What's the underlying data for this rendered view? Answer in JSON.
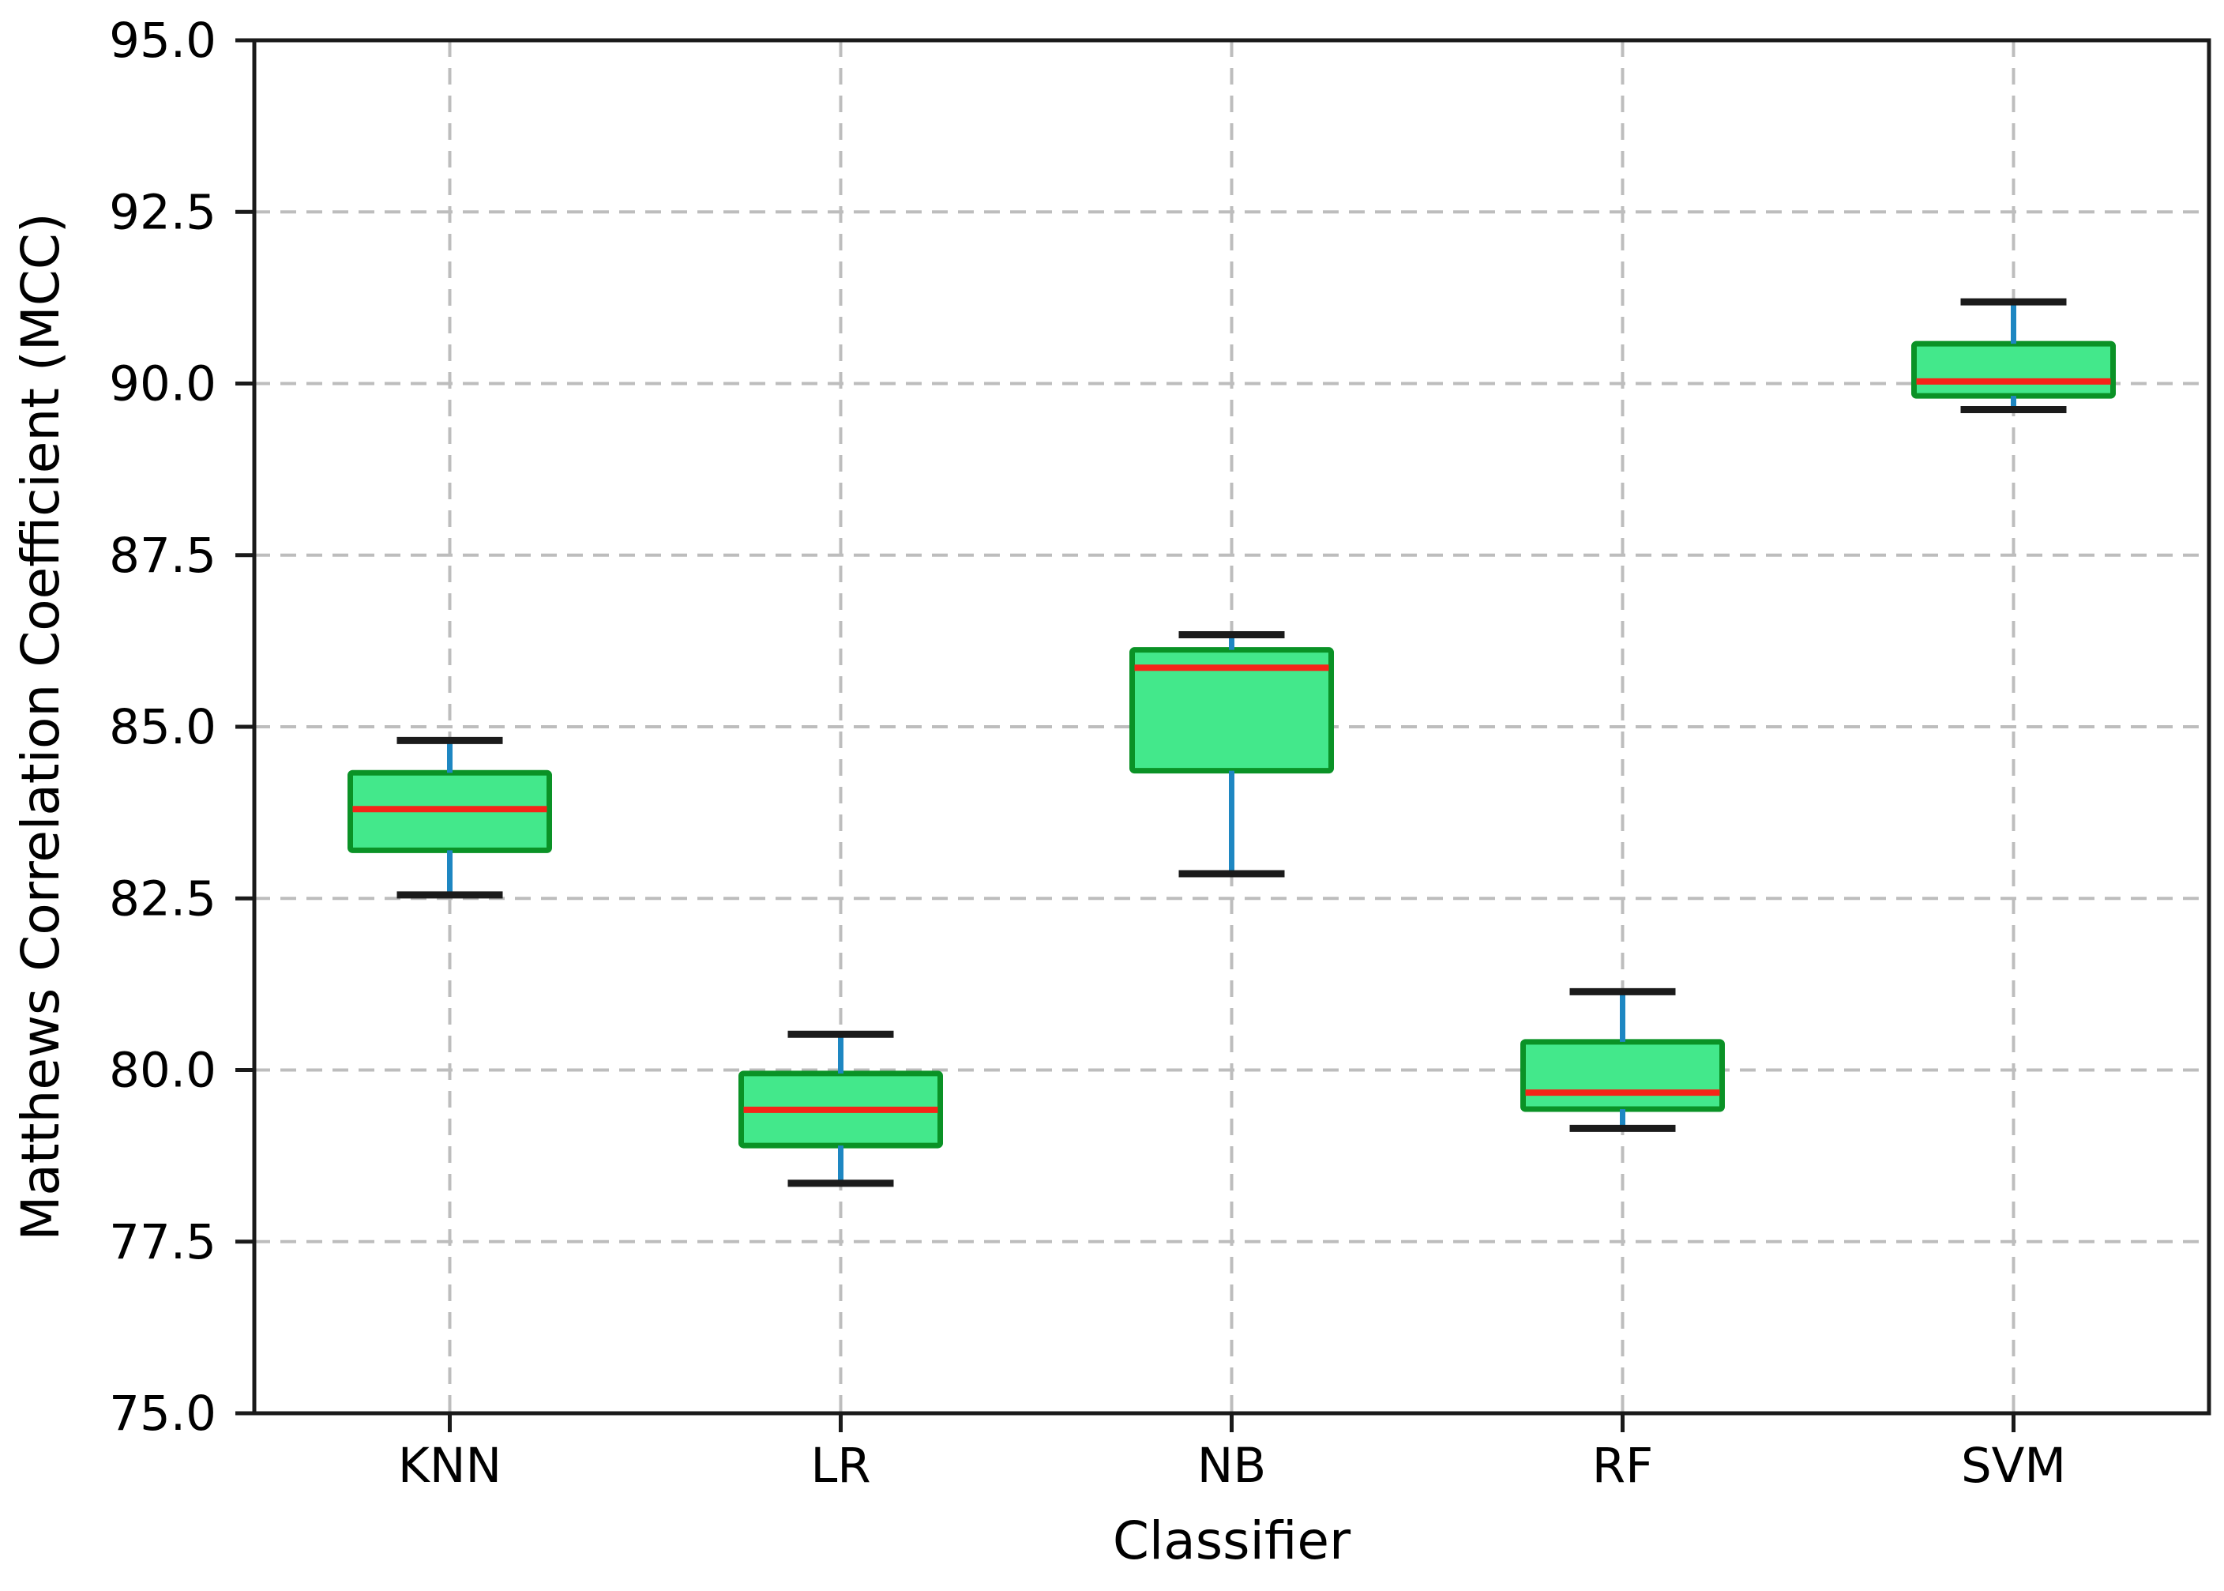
{
  "figure": {
    "background": "#ffffff",
    "title": ""
  },
  "chart_data": {
    "type": "boxplot",
    "title": "",
    "xlabel": "Classifier",
    "ylabel": "Matthews Correlation Coefficient (MCC)",
    "categories": [
      "KNN",
      "LR",
      "NB",
      "RF",
      "SVM"
    ],
    "series": [
      {
        "category": "KNN",
        "whisker_low": 82.55,
        "q1": 83.2,
        "median": 83.8,
        "q3": 84.33,
        "whisker_high": 84.8
      },
      {
        "category": "LR",
        "whisker_low": 78.35,
        "q1": 78.9,
        "median": 79.42,
        "q3": 79.95,
        "whisker_high": 80.52
      },
      {
        "category": "NB",
        "whisker_low": 82.86,
        "q1": 84.36,
        "median": 85.86,
        "q3": 86.12,
        "whisker_high": 86.34
      },
      {
        "category": "RF",
        "whisker_low": 79.15,
        "q1": 79.43,
        "median": 79.67,
        "q3": 80.41,
        "whisker_high": 81.14
      },
      {
        "category": "SVM",
        "whisker_low": 89.62,
        "q1": 89.82,
        "median": 90.03,
        "q3": 90.58,
        "whisker_high": 91.19
      }
    ],
    "ylim": [
      75.0,
      95.0
    ],
    "yticks": [
      75.0,
      77.5,
      80.0,
      82.5,
      85.0,
      87.5,
      90.0,
      92.5,
      95.0
    ],
    "ytick_labels": [
      "75.0",
      "77.5",
      "80.0",
      "82.5",
      "85.0",
      "87.5",
      "90.0",
      "92.5",
      "95.0"
    ],
    "grid": {
      "horizontal": true,
      "vertical": true,
      "style": "dashed"
    },
    "legend": "none",
    "colors": {
      "box_fill": "#43e88b",
      "box_edge": "#0a9226",
      "median": "#f52418",
      "whisker": "#1e87c2",
      "cap": "#1b1b1b",
      "grid": "#bdbdbd",
      "axis": "#1a1a1a",
      "text": "#000000",
      "background": "#ffffff"
    }
  }
}
